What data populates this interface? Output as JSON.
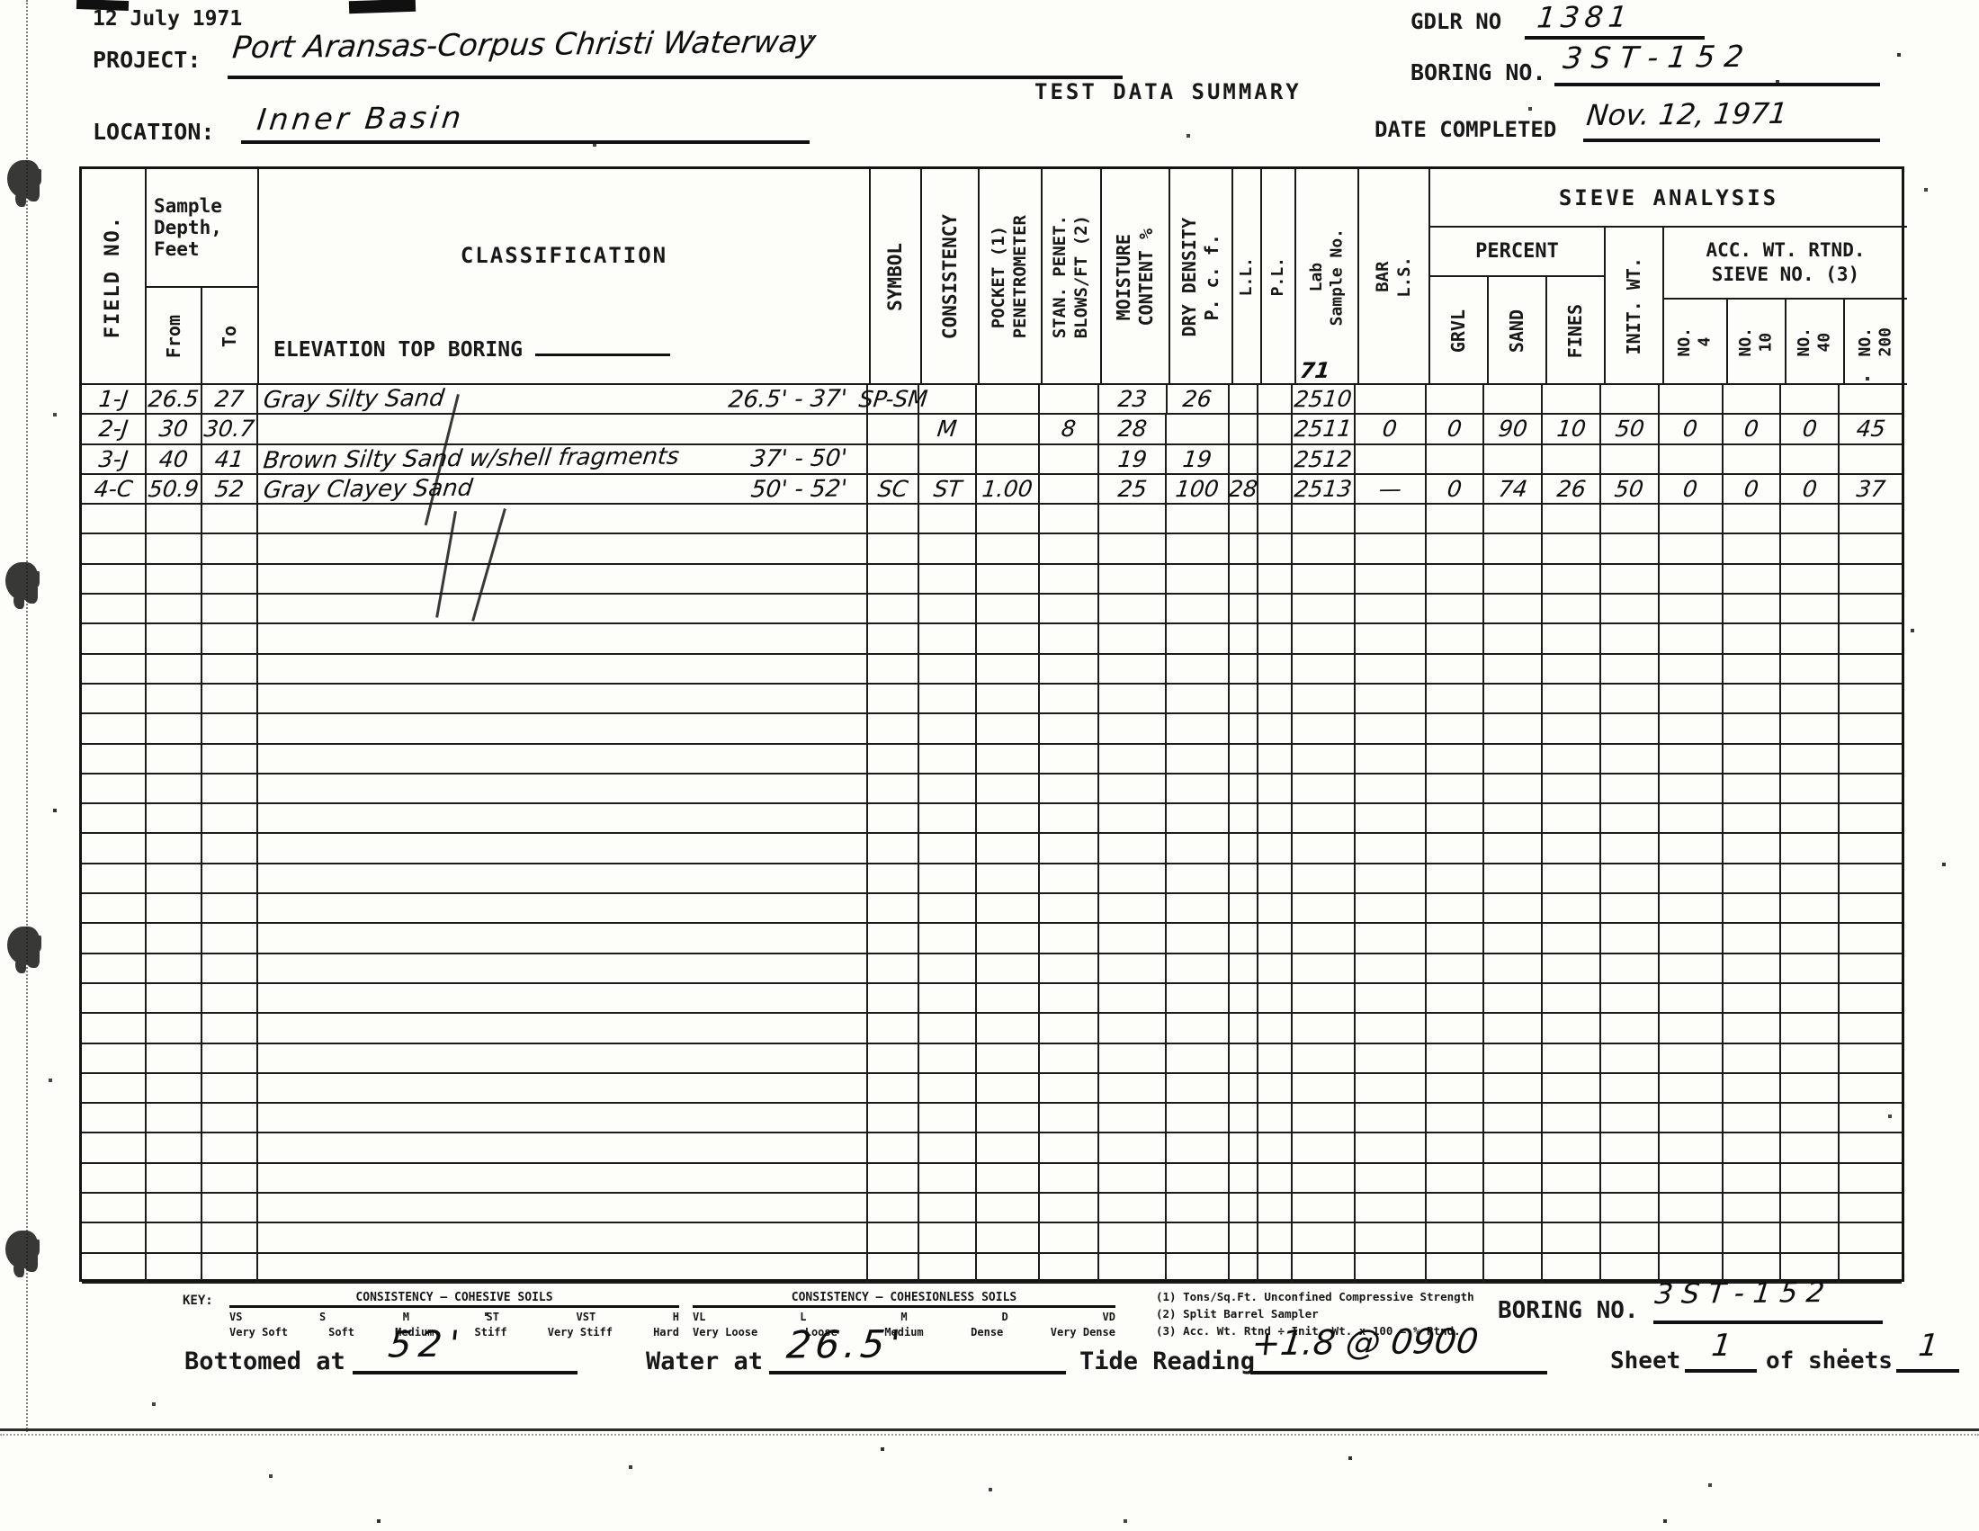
{
  "header": {
    "date_line": "12 July 1971",
    "project_label": "PROJECT:",
    "project_value": "Port Aransas-Corpus Christi Waterway",
    "title": "TEST DATA SUMMARY",
    "gdlr_label": "GDLR NO",
    "gdlr_value": "1381",
    "boring_label": "BORING NO.",
    "boring_value": "3 S T - 1 5 2",
    "location_label": "LOCATION:",
    "location_value": "Inner Basin",
    "date_completed_label": "DATE COMPLETED",
    "date_completed_value": "Nov. 12, 1971"
  },
  "table": {
    "headers": {
      "field_no": "FIELD NO.",
      "sample_depth": "Sample\nDepth,\nFeet",
      "from": "From",
      "to": "To",
      "classification": "CLASSIFICATION",
      "elevation": "ELEVATION TOP BORING",
      "symbol": "SYMBOL",
      "consistency": "CONSISTENCY",
      "pocket_pen": "POCKET (1)\nPENETROMETER",
      "stan_penet": "STAN. PENET.\nBLOWS/FT (2)",
      "moisture": "MOISTURE\nCONTENT %",
      "dry_density": "DRY DENSITY\nP. c. f.",
      "ll": "L.L.",
      "pl": "P.L.",
      "lab_no": "Lab\nSample No.",
      "lab_year_note": "71",
      "bar_ls": "BAR\nL.S.",
      "sieve_title": "SIEVE ANALYSIS",
      "percent": "PERCENT",
      "grvl": "GRVL",
      "sand": "SAND",
      "fines": "FINES",
      "init_wt": "INIT. WT.",
      "acc_wt": "ACC. WT. RTND.\nSIEVE NO. (3)",
      "no4": "NO.\n4",
      "no10": "NO.\n10",
      "no40": "NO.\n40",
      "no200": "NO.\n200"
    },
    "rows": [
      {
        "field_no": "1-J",
        "from": "26.5",
        "to": "27",
        "classification": "Gray Silty Sand",
        "depth_range": "26.5' - 37'",
        "symbol": "SP-SM",
        "consistency": "",
        "pocket_pen": "",
        "stan_penet": "",
        "moisture": "23",
        "dry_density": "26",
        "ll": "",
        "pl": "",
        "lab_no": "2510",
        "bar_ls": "",
        "grvl": "",
        "sand": "",
        "fines": "",
        "init_wt": "",
        "no4": "",
        "no10": "",
        "no40": "",
        "no200": ""
      },
      {
        "field_no": "2-J",
        "from": "30",
        "to": "30.7",
        "classification": "",
        "depth_range": "",
        "symbol": "",
        "consistency": "M",
        "pocket_pen": "",
        "stan_penet": "8",
        "moisture": "28",
        "dry_density": "",
        "ll": "",
        "pl": "",
        "lab_no": "2511",
        "bar_ls": "0",
        "grvl": "0",
        "sand": "90",
        "fines": "10",
        "init_wt": "50",
        "no4": "0",
        "no10": "0",
        "no40": "0",
        "no200": "45"
      },
      {
        "field_no": "3-J",
        "from": "40",
        "to": "41",
        "classification": "Brown Silty Sand w/shell fragments",
        "depth_range": "37' - 50'",
        "symbol": "",
        "consistency": "",
        "pocket_pen": "",
        "stan_penet": "",
        "moisture": "19",
        "dry_density": "19",
        "ll": "",
        "pl": "",
        "lab_no": "2512",
        "bar_ls": "",
        "grvl": "",
        "sand": "",
        "fines": "",
        "init_wt": "",
        "no4": "",
        "no10": "",
        "no40": "",
        "no200": ""
      },
      {
        "field_no": "4-C",
        "from": "50.9",
        "to": "52",
        "classification": "Gray Clayey Sand",
        "depth_range": "50' - 52'",
        "symbol": "SC",
        "consistency": "ST",
        "pocket_pen": "1.00",
        "stan_penet": "",
        "moisture": "25",
        "dry_density": "100",
        "ll": "28",
        "pl": "",
        "lab_no": "2513",
        "bar_ls": "—",
        "grvl": "0",
        "sand": "74",
        "fines": "26",
        "init_wt": "50",
        "no4": "0",
        "no10": "0",
        "no40": "0",
        "no200": "37"
      }
    ],
    "empty_rows": 26
  },
  "footer": {
    "key_label": "KEY:",
    "cohesive": {
      "title": "CONSISTENCY — COHESIVE SOILS",
      "codes": [
        "VS",
        "S",
        "M",
        "ST",
        "VST",
        "H"
      ],
      "names": [
        "Very Soft",
        "Soft",
        "Medium",
        "Stiff",
        "Very Stiff",
        "Hard"
      ]
    },
    "cohesionless": {
      "title": "CONSISTENCY — COHESIONLESS SOILS",
      "codes": [
        "VL",
        "L",
        "M",
        "D",
        "VD"
      ],
      "names": [
        "Very Loose",
        "Loose",
        "Medium",
        "Dense",
        "Very Dense"
      ]
    },
    "notes": [
      "(1) Tons/Sq.Ft. Unconfined Compressive Strength",
      "(2) Split Barrel Sampler",
      "(3) Acc. Wt. Rtnd ÷ Init. Wt. x 100 = % Rtnd."
    ],
    "boring_label": "BORING NO.",
    "boring_value": "3 S T - 1 5 2",
    "bottomed_label": "Bottomed at",
    "bottomed_value": "52'",
    "water_label": "Water at",
    "water_value": "26.5'",
    "tide_label": "Tide Reading",
    "tide_value": "+1.8 @ 0900",
    "sheet_label": "Sheet",
    "sheet_value": "1",
    "of_sheets_label": "of sheets",
    "sheets_value": "1"
  }
}
